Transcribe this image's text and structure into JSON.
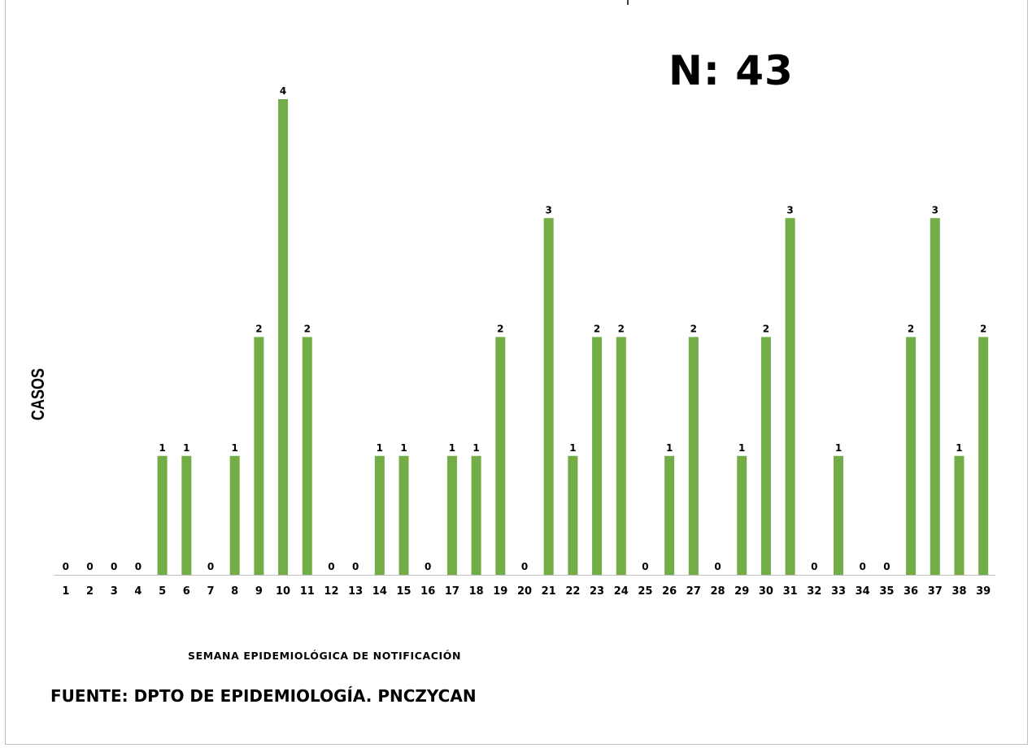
{
  "n_label": "N: 43",
  "source": "FUENTE: DPTO DE EPIDEMIOLOGÍA. PNCZYCAN",
  "chart_data": {
    "type": "bar",
    "title": "",
    "xlabel": "SEMANA EPIDEMIOLÓGICA DE NOTIFICACIÓN",
    "ylabel": "CASOS",
    "categories": [
      "1",
      "2",
      "3",
      "4",
      "5",
      "6",
      "7",
      "8",
      "9",
      "10",
      "11",
      "12",
      "13",
      "14",
      "15",
      "16",
      "17",
      "18",
      "19",
      "20",
      "21",
      "22",
      "23",
      "24",
      "25",
      "26",
      "27",
      "28",
      "29",
      "30",
      "31",
      "32",
      "33",
      "34",
      "35",
      "36",
      "37",
      "38",
      "39"
    ],
    "values": [
      0,
      0,
      0,
      0,
      1,
      1,
      0,
      1,
      2,
      4,
      2,
      0,
      0,
      1,
      1,
      0,
      1,
      1,
      2,
      0,
      3,
      1,
      2,
      2,
      0,
      1,
      2,
      0,
      1,
      2,
      3,
      0,
      1,
      0,
      0,
      2,
      3,
      1,
      2
    ],
    "ylim": [
      0,
      4
    ],
    "data_labels": true,
    "grid": false,
    "legend": "none",
    "bar_color": "#72ad47"
  }
}
